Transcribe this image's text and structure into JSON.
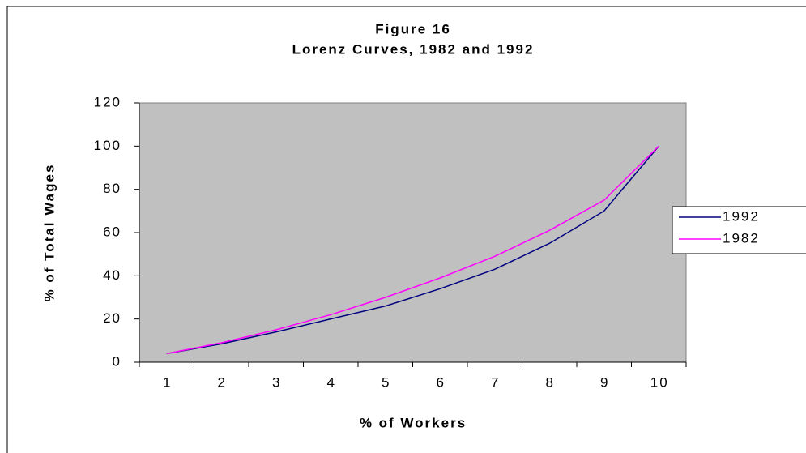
{
  "chart_data": {
    "type": "line",
    "title": "Figure 16",
    "subtitle": "Lorenz Curves, 1982 and 1992",
    "x_label": "% of Workers",
    "y_label": "% of Total Wages",
    "categories": [
      1,
      2,
      3,
      4,
      5,
      6,
      7,
      8,
      9,
      10
    ],
    "series": [
      {
        "name": "1992",
        "color": "#000080",
        "values": [
          4,
          8.5,
          14,
          20,
          26,
          34,
          43,
          55,
          70,
          100
        ]
      },
      {
        "name": "1982",
        "color": "#ff00ff",
        "values": [
          4,
          9,
          15,
          22,
          30,
          39,
          49,
          61,
          75,
          100
        ]
      }
    ],
    "ylim": [
      0,
      120
    ],
    "yticks": [
      0,
      20,
      40,
      60,
      80,
      100,
      120
    ],
    "grid": false,
    "legend": "right",
    "plot_background": "#c0c0c0"
  }
}
